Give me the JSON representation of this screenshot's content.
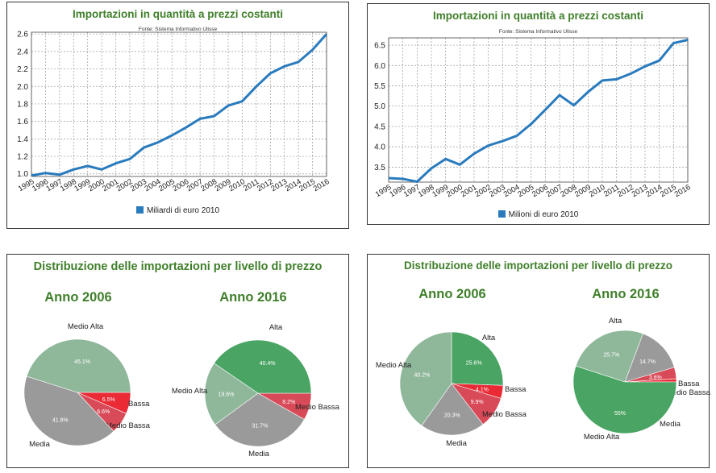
{
  "line_charts": [
    {
      "title": "Importazioni in quantità a prezzi costanti",
      "source": "Fonte: Sistema Informativo Ulisse",
      "legend": "Miliardi di euro 2010",
      "color": "#2a7bbd"
    },
    {
      "title": "Importazioni in quantità a prezzi costanti",
      "source": "Fonte: Sistema Informativo Ulisse",
      "legend": "Milioni di euro 2010",
      "color": "#2a7bbd"
    }
  ],
  "pie_panels": [
    {
      "title": "Distribuzione delle importazioni per livello di prezzo",
      "year_labels": [
        "Anno 2006",
        "Anno 2016"
      ]
    },
    {
      "title": "Distribuzione delle importazioni per livello di prezzo",
      "year_labels": [
        "Anno 2006",
        "Anno 2016"
      ]
    }
  ],
  "chart_data": [
    {
      "type": "line",
      "title": "Importazioni in quantità a prezzi costanti",
      "x": [
        "1995",
        "1996",
        "1997",
        "1998",
        "1999",
        "2000",
        "2001",
        "2002",
        "2003",
        "2004",
        "2005",
        "2006",
        "2007",
        "2008",
        "2009",
        "2010",
        "2011",
        "2012",
        "2013",
        "2014",
        "2015",
        "2016"
      ],
      "series": [
        {
          "name": "Miliardi di euro 2010",
          "values": [
            0.98,
            1.01,
            0.99,
            1.05,
            1.09,
            1.05,
            1.12,
            1.17,
            1.3,
            1.36,
            1.44,
            1.53,
            1.63,
            1.66,
            1.78,
            1.83,
            2.0,
            2.15,
            2.23,
            2.28,
            2.42,
            2.6
          ]
        }
      ],
      "yticks": [
        "1.0",
        "1.2",
        "1.4",
        "1.6",
        "1.8",
        "2.0",
        "2.2",
        "2.4",
        "2.6"
      ],
      "ylim": [
        0.97,
        2.62
      ],
      "grid": true,
      "legend": "bottom"
    },
    {
      "type": "line",
      "title": "Importazioni in quantità a prezzi costanti",
      "x": [
        "1995",
        "1996",
        "1997",
        "1998",
        "1999",
        "2000",
        "2001",
        "2002",
        "2003",
        "2004",
        "2005",
        "2006",
        "2007",
        "2008",
        "2009",
        "2010",
        "2011",
        "2012",
        "2013",
        "2014",
        "2015",
        "2016"
      ],
      "series": [
        {
          "name": "Milioni di euro 2010",
          "values": [
            3.23,
            3.21,
            3.14,
            3.47,
            3.7,
            3.56,
            3.83,
            4.03,
            4.14,
            4.27,
            4.56,
            4.91,
            5.27,
            5.02,
            5.35,
            5.63,
            5.66,
            5.8,
            5.98,
            6.12,
            6.55,
            6.63
          ]
        }
      ],
      "yticks": [
        "3.5",
        "4.0",
        "4.5",
        "5.0",
        "5.5",
        "6.0",
        "6.5"
      ],
      "ylim": [
        3.13,
        6.68
      ],
      "grid": true,
      "legend": "bottom"
    },
    {
      "type": "pie",
      "title": "Anno 2006",
      "slices": [
        {
          "label": "Bassa",
          "value": 6.5,
          "pct": "6.5%",
          "color": "#ea2a35"
        },
        {
          "label": "Medio Bassa",
          "value": 6.6,
          "pct": "6.6%",
          "color": "#d84a58"
        },
        {
          "label": "Media",
          "value": 41.8,
          "pct": "41.8%",
          "color": "#9a9a9a"
        },
        {
          "label": "Medio Alta",
          "value": 45.1,
          "pct": "45.1%",
          "color": "#8fb89b"
        }
      ]
    },
    {
      "type": "pie",
      "title": "Anno 2016",
      "slices": [
        {
          "label": "Medio Bassa",
          "value": 8.2,
          "pct": "8.2%",
          "color": "#d84a58"
        },
        {
          "label": "Media",
          "value": 31.7,
          "pct": "31.7%",
          "color": "#9a9a9a"
        },
        {
          "label": "Medio Alta",
          "value": 19.6,
          "pct": "19.6%",
          "color": "#8fb89b"
        },
        {
          "label": "Alta",
          "value": 40.4,
          "pct": "40.4%",
          "color": "#4aa564"
        }
      ]
    },
    {
      "type": "pie",
      "title": "Anno 2006",
      "slices": [
        {
          "label": "Alta",
          "value": 25.6,
          "pct": "25.6%",
          "color": "#4aa564"
        },
        {
          "label": "Bassa",
          "value": 4.1,
          "pct": "4.1%",
          "color": "#ea2a35"
        },
        {
          "label": "Medio Bassa",
          "value": 9.9,
          "pct": "9.9%",
          "color": "#d84a58"
        },
        {
          "label": "Media",
          "value": 20.3,
          "pct": "20.3%",
          "color": "#9a9a9a"
        },
        {
          "label": "Medio Alta",
          "value": 40.2,
          "pct": "40.2%",
          "color": "#8fb89b"
        }
      ]
    },
    {
      "type": "pie",
      "title": "Anno 2016",
      "slices": [
        {
          "label": "Bassa",
          "value": 1.0,
          "pct": "",
          "color": "#ea2a35"
        },
        {
          "label": "Medio Bassa",
          "value": 3.6,
          "pct": "3.6%",
          "color": "#d84a58"
        },
        {
          "label": "Media",
          "value": 14.7,
          "pct": "14.7%",
          "color": "#9a9a9a"
        },
        {
          "label": "Medio Alta",
          "value": 25.7,
          "pct": "25.7%",
          "color": "#8fb89b"
        },
        {
          "label": "Alta",
          "value": 55,
          "pct": "55%",
          "color": "#4aa564"
        }
      ]
    }
  ]
}
